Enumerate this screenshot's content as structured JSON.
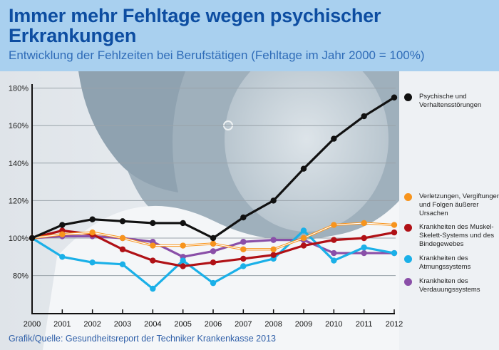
{
  "header": {
    "title": "Immer mehr Fehltage wegen psychischer Erkrankungen",
    "subtitle": "Entwicklung der Fehlzeiten bei Berufstätigen (Fehltage im Jahr 2000 = 100%)"
  },
  "footer": {
    "source": "Grafik/Quelle: Gesundheitsreport der Techniker Krankenkasse 2013"
  },
  "colors": {
    "header_bg": "#a9d0ef",
    "title": "#0d4da1",
    "subtitle": "#2f6cb8"
  },
  "chart_data": {
    "type": "line",
    "title": "Immer mehr Fehltage wegen psychischer Erkrankungen",
    "subtitle": "Entwicklung der Fehlzeiten bei Berufstätigen (Fehltage im Jahr 2000 = 100%)",
    "xlabel": "",
    "ylabel": "",
    "x": [
      "2000",
      "2001",
      "2002",
      "2003",
      "2004",
      "2005",
      "2006",
      "2007",
      "2008",
      "2009",
      "2010",
      "2011",
      "2012"
    ],
    "ylim": [
      60,
      180
    ],
    "yticks": [
      "80%",
      "100%",
      "120%",
      "140%",
      "160%",
      "180%"
    ],
    "ytick_values": [
      80,
      100,
      120,
      140,
      160,
      180
    ],
    "grid": true,
    "legend_position": "right",
    "series": [
      {
        "name": "Psychische und Verhaltensstörungen",
        "color": "#111111",
        "values": [
          100,
          107,
          110,
          109,
          108,
          108,
          100,
          111,
          120,
          137,
          153,
          165,
          175
        ]
      },
      {
        "name": "Verletzungen, Vergiftungen und Folgen äußerer Ursachen",
        "color": "#f7941d",
        "values": [
          100,
          102,
          103,
          100,
          96,
          96,
          97,
          94,
          94,
          100,
          107,
          108,
          107
        ]
      },
      {
        "name": "Krankheiten des Muskel-Skelett-Systems und des Bindegewebes",
        "color": "#b01116",
        "values": [
          100,
          104,
          102,
          94,
          88,
          85,
          87,
          89,
          91,
          96,
          99,
          100,
          103
        ]
      },
      {
        "name": "Krankheiten des Atmungssystems",
        "color": "#1ab0e8",
        "values": [
          100,
          90,
          87,
          86,
          73,
          88,
          76,
          85,
          89,
          104,
          88,
          95,
          92
        ]
      },
      {
        "name": "Krankheiten des Verdauungssystems",
        "color": "#8a4fa8",
        "values": [
          100,
          101,
          101,
          100,
          98,
          90,
          93,
          98,
          99,
          99,
          92,
          92,
          92
        ]
      }
    ]
  }
}
